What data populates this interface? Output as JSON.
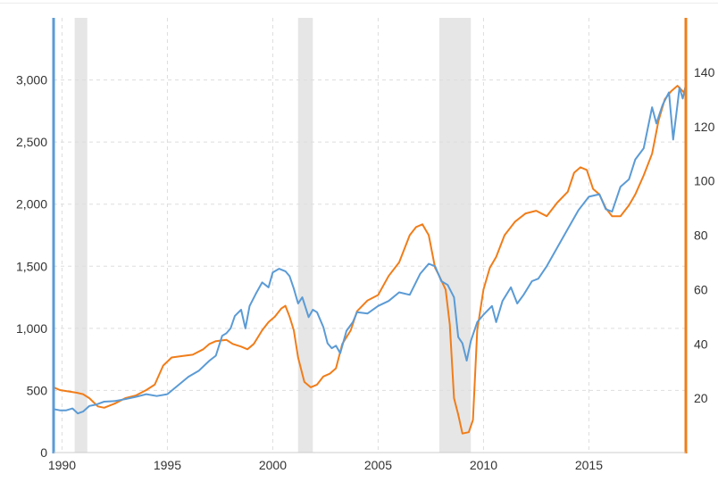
{
  "chart_data": {
    "type": "line",
    "x_range": [
      1989.6,
      2019.6
    ],
    "x_ticks": [
      {
        "value": 1990,
        "label": "1990"
      },
      {
        "value": 1995,
        "label": "1995"
      },
      {
        "value": 2000,
        "label": "2000"
      },
      {
        "value": 2005,
        "label": "2005"
      },
      {
        "value": 2010,
        "label": "2010"
      },
      {
        "value": 2015,
        "label": "2015"
      }
    ],
    "y_left": {
      "range": [
        0,
        3500
      ],
      "ticks": [
        {
          "value": 0,
          "label": "0"
        },
        {
          "value": 500,
          "label": "500"
        },
        {
          "value": 1000,
          "label": "1,000"
        },
        {
          "value": 1500,
          "label": "1,500"
        },
        {
          "value": 2000,
          "label": "2,000"
        },
        {
          "value": 2500,
          "label": "2,500"
        },
        {
          "value": 3000,
          "label": "3,000"
        }
      ],
      "color": "#5b9bd5"
    },
    "y_right": {
      "range": [
        0,
        160
      ],
      "ticks": [
        {
          "value": 20,
          "label": "20"
        },
        {
          "value": 40,
          "label": "40"
        },
        {
          "value": 60,
          "label": "60"
        },
        {
          "value": 80,
          "label": "80"
        },
        {
          "value": 100,
          "label": "100"
        },
        {
          "value": 120,
          "label": "120"
        },
        {
          "value": 140,
          "label": "140"
        }
      ],
      "color": "#f07d1a"
    },
    "grid": true,
    "recessions": [
      [
        1990.6,
        1991.2
      ],
      [
        2001.2,
        2001.9
      ],
      [
        2007.9,
        2009.4
      ]
    ],
    "series": [
      {
        "axis": "left",
        "color": "#5b9bd5",
        "points": [
          [
            1989.6,
            350
          ],
          [
            1989.9,
            340
          ],
          [
            1990.2,
            340
          ],
          [
            1990.5,
            355
          ],
          [
            1990.75,
            315
          ],
          [
            1991.0,
            330
          ],
          [
            1991.3,
            375
          ],
          [
            1991.6,
            385
          ],
          [
            1992.0,
            410
          ],
          [
            1992.5,
            415
          ],
          [
            1993.0,
            430
          ],
          [
            1993.5,
            448
          ],
          [
            1994.0,
            470
          ],
          [
            1994.5,
            455
          ],
          [
            1995.0,
            470
          ],
          [
            1995.5,
            540
          ],
          [
            1996.0,
            610
          ],
          [
            1996.5,
            660
          ],
          [
            1997.0,
            740
          ],
          [
            1997.3,
            780
          ],
          [
            1997.6,
            940
          ],
          [
            1997.8,
            960
          ],
          [
            1998.0,
            1000
          ],
          [
            1998.2,
            1100
          ],
          [
            1998.5,
            1150
          ],
          [
            1998.7,
            1000
          ],
          [
            1998.9,
            1180
          ],
          [
            1999.2,
            1280
          ],
          [
            1999.5,
            1370
          ],
          [
            1999.8,
            1330
          ],
          [
            2000.0,
            1450
          ],
          [
            2000.3,
            1480
          ],
          [
            2000.6,
            1460
          ],
          [
            2000.8,
            1420
          ],
          [
            2001.0,
            1320
          ],
          [
            2001.2,
            1200
          ],
          [
            2001.4,
            1250
          ],
          [
            2001.7,
            1090
          ],
          [
            2001.9,
            1150
          ],
          [
            2002.1,
            1130
          ],
          [
            2002.4,
            1010
          ],
          [
            2002.6,
            880
          ],
          [
            2002.8,
            840
          ],
          [
            2003.0,
            860
          ],
          [
            2003.2,
            800
          ],
          [
            2003.5,
            980
          ],
          [
            2003.8,
            1050
          ],
          [
            2004.0,
            1130
          ],
          [
            2004.5,
            1120
          ],
          [
            2005.0,
            1180
          ],
          [
            2005.5,
            1220
          ],
          [
            2006.0,
            1290
          ],
          [
            2006.5,
            1270
          ],
          [
            2007.0,
            1440
          ],
          [
            2007.4,
            1520
          ],
          [
            2007.7,
            1500
          ],
          [
            2008.0,
            1380
          ],
          [
            2008.3,
            1350
          ],
          [
            2008.6,
            1250
          ],
          [
            2008.8,
            930
          ],
          [
            2009.0,
            880
          ],
          [
            2009.2,
            740
          ],
          [
            2009.4,
            900
          ],
          [
            2009.7,
            1050
          ],
          [
            2010.0,
            1110
          ],
          [
            2010.4,
            1180
          ],
          [
            2010.6,
            1050
          ],
          [
            2010.9,
            1220
          ],
          [
            2011.3,
            1330
          ],
          [
            2011.6,
            1200
          ],
          [
            2011.9,
            1270
          ],
          [
            2012.3,
            1380
          ],
          [
            2012.6,
            1400
          ],
          [
            2013.0,
            1500
          ],
          [
            2013.5,
            1650
          ],
          [
            2014.0,
            1800
          ],
          [
            2014.5,
            1950
          ],
          [
            2015.0,
            2060
          ],
          [
            2015.5,
            2080
          ],
          [
            2015.8,
            1960
          ],
          [
            2016.1,
            1940
          ],
          [
            2016.5,
            2140
          ],
          [
            2016.9,
            2200
          ],
          [
            2017.2,
            2360
          ],
          [
            2017.6,
            2450
          ],
          [
            2018.0,
            2780
          ],
          [
            2018.2,
            2650
          ],
          [
            2018.5,
            2800
          ],
          [
            2018.8,
            2900
          ],
          [
            2019.0,
            2520
          ],
          [
            2019.2,
            2800
          ],
          [
            2019.3,
            2940
          ],
          [
            2019.45,
            2850
          ],
          [
            2019.6,
            2960
          ]
        ]
      },
      {
        "axis": "right",
        "color": "#f07d1a",
        "points": [
          [
            1989.6,
            24
          ],
          [
            1989.9,
            23
          ],
          [
            1990.3,
            22.5
          ],
          [
            1990.7,
            22
          ],
          [
            1991.0,
            21.5
          ],
          [
            1991.3,
            20
          ],
          [
            1991.7,
            17
          ],
          [
            1992.0,
            16.5
          ],
          [
            1992.5,
            18
          ],
          [
            1993.0,
            20
          ],
          [
            1993.5,
            21
          ],
          [
            1994.0,
            23
          ],
          [
            1994.4,
            25
          ],
          [
            1994.8,
            32
          ],
          [
            1995.2,
            35
          ],
          [
            1995.7,
            35.5
          ],
          [
            1996.2,
            36
          ],
          [
            1996.7,
            38
          ],
          [
            1997.0,
            40
          ],
          [
            1997.3,
            41
          ],
          [
            1997.8,
            41.5
          ],
          [
            1998.1,
            40
          ],
          [
            1998.5,
            39
          ],
          [
            1998.8,
            38
          ],
          [
            1999.1,
            40
          ],
          [
            1999.5,
            45
          ],
          [
            1999.8,
            48
          ],
          [
            2000.1,
            50
          ],
          [
            2000.4,
            53
          ],
          [
            2000.6,
            54
          ],
          [
            2000.8,
            50
          ],
          [
            2001.0,
            45
          ],
          [
            2001.2,
            35
          ],
          [
            2001.5,
            26
          ],
          [
            2001.8,
            24
          ],
          [
            2002.1,
            25
          ],
          [
            2002.4,
            28
          ],
          [
            2002.7,
            29
          ],
          [
            2003.0,
            31
          ],
          [
            2003.3,
            40
          ],
          [
            2003.7,
            45
          ],
          [
            2004.0,
            52
          ],
          [
            2004.5,
            56
          ],
          [
            2005.0,
            58
          ],
          [
            2005.5,
            65
          ],
          [
            2006.0,
            70
          ],
          [
            2006.5,
            80
          ],
          [
            2006.8,
            83
          ],
          [
            2007.1,
            84
          ],
          [
            2007.4,
            80
          ],
          [
            2007.7,
            68
          ],
          [
            2007.9,
            65
          ],
          [
            2008.2,
            60
          ],
          [
            2008.4,
            47
          ],
          [
            2008.6,
            20
          ],
          [
            2008.8,
            14
          ],
          [
            2009.0,
            7
          ],
          [
            2009.3,
            7.5
          ],
          [
            2009.5,
            12
          ],
          [
            2009.7,
            45
          ],
          [
            2010.0,
            60
          ],
          [
            2010.3,
            68
          ],
          [
            2010.6,
            72
          ],
          [
            2011.0,
            80
          ],
          [
            2011.5,
            85
          ],
          [
            2012.0,
            88
          ],
          [
            2012.5,
            89
          ],
          [
            2013.0,
            87
          ],
          [
            2013.5,
            92
          ],
          [
            2014.0,
            96
          ],
          [
            2014.3,
            103
          ],
          [
            2014.6,
            105
          ],
          [
            2014.9,
            104
          ],
          [
            2015.2,
            97
          ],
          [
            2015.5,
            95
          ],
          [
            2015.8,
            90
          ],
          [
            2016.1,
            87
          ],
          [
            2016.5,
            87
          ],
          [
            2016.9,
            91
          ],
          [
            2017.2,
            95
          ],
          [
            2017.6,
            102
          ],
          [
            2018.0,
            110
          ],
          [
            2018.3,
            122
          ],
          [
            2018.6,
            130
          ],
          [
            2018.9,
            133
          ],
          [
            2019.2,
            135
          ],
          [
            2019.45,
            133
          ],
          [
            2019.6,
            132
          ]
        ]
      }
    ]
  }
}
